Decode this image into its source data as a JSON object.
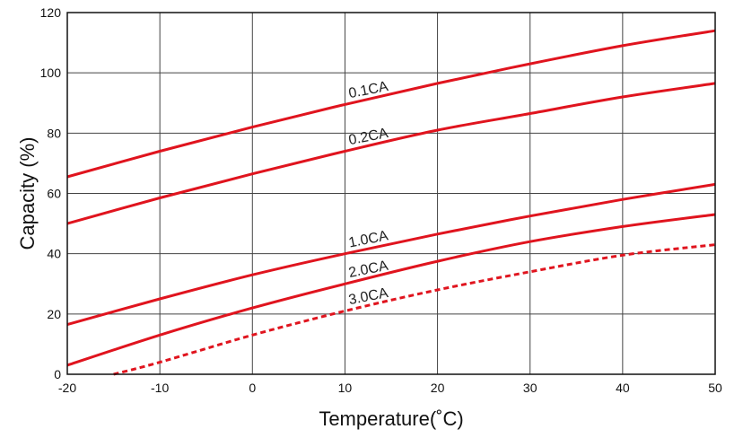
{
  "chart_data": {
    "type": "line",
    "xlabel": "Temperature(˚C)",
    "ylabel": "Capacity (%)",
    "xlim": [
      -20,
      50
    ],
    "ylim": [
      0,
      120
    ],
    "x_ticks": [
      -20,
      -10,
      0,
      10,
      20,
      30,
      40,
      50
    ],
    "y_ticks": [
      0,
      20,
      40,
      60,
      80,
      100,
      120
    ],
    "grid": true,
    "line_color": "#e0141e",
    "series": [
      {
        "name": "0.1CA",
        "style": "solid",
        "x": [
          -20,
          -10,
          0,
          10,
          20,
          30,
          40,
          50
        ],
        "y": [
          65.5,
          74,
          82,
          89.5,
          96.5,
          103,
          109,
          114
        ]
      },
      {
        "name": "0.2CA",
        "style": "solid",
        "x": [
          -20,
          -10,
          0,
          10,
          20,
          30,
          40,
          50
        ],
        "y": [
          50,
          58.5,
          66.5,
          74,
          81,
          86.5,
          92,
          96.5
        ]
      },
      {
        "name": "1.0CA",
        "style": "solid",
        "x": [
          -20,
          -10,
          0,
          10,
          20,
          30,
          40,
          50
        ],
        "y": [
          16.5,
          25,
          33,
          40,
          46.5,
          52.5,
          58,
          63
        ]
      },
      {
        "name": "2.0CA",
        "style": "solid",
        "x": [
          -20,
          -10,
          0,
          10,
          20,
          30,
          40,
          50
        ],
        "y": [
          3,
          13,
          22,
          30,
          37.5,
          44,
          49,
          53
        ]
      },
      {
        "name": "3.0CA",
        "style": "dashed",
        "x": [
          -15,
          -10,
          0,
          10,
          20,
          30,
          40,
          50
        ],
        "y": [
          0,
          4,
          13,
          21,
          28,
          34,
          39.5,
          43
        ]
      }
    ]
  }
}
